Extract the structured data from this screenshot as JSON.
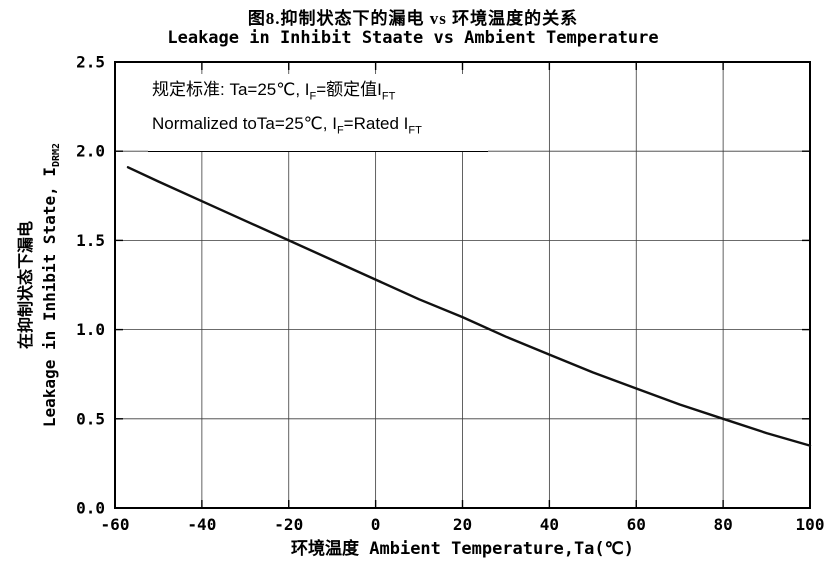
{
  "title": {
    "line1": "图8.抑制状态下的漏电 vs 环境温度的关系",
    "line2": "Leakage in Inhibit Staate vs Ambient Temperature"
  },
  "annotation": {
    "l1a": "规定标准: Ta=25℃, I",
    "l1sub1": "F",
    "l1b": "=额定值I",
    "l1sub2": "FT",
    "l2a": "Normalized toTa=25℃, I",
    "l2sub1": "F",
    "l2b": "=Rated I",
    "l2sub2": "FT"
  },
  "x_axis": {
    "title": "环境温度 Ambient Temperature,Ta(℃)"
  },
  "y_axis": {
    "title_cn": "在抑制状态下漏电",
    "title_en": "Leakage in Inhibit State, I",
    "title_sub": "DRM2"
  },
  "chart_data": {
    "type": "line",
    "title": "Leakage in Inhibit Staate vs Ambient Temperature",
    "xlabel": "环境温度 Ambient Temperature,Ta(℃)",
    "ylabel": "在抑制状态下漏电 Leakage in Inhibit State, I_DRM2",
    "xlim": [
      -60,
      100
    ],
    "ylim": [
      0,
      2.5
    ],
    "x_ticks": [
      -60,
      -40,
      -20,
      0,
      20,
      40,
      60,
      80,
      100
    ],
    "y_ticks": [
      0,
      0.5,
      1.0,
      1.5,
      2.0,
      2.5
    ],
    "x_tick_labels": [
      "-60",
      "-40",
      "-20",
      "0",
      "20",
      "40",
      "60",
      "80",
      "100"
    ],
    "y_tick_labels": [
      "0.0",
      "0.5",
      "1.0",
      "1.5",
      "2.0",
      "2.5"
    ],
    "grid": true,
    "legend": "none",
    "line_color": "#111111",
    "grid_color": "#3a3a3a",
    "x": [
      -57,
      -50,
      -40,
      -30,
      -20,
      -10,
      0,
      10,
      20,
      30,
      40,
      50,
      60,
      70,
      80,
      90,
      100
    ],
    "y": [
      1.91,
      1.83,
      1.72,
      1.61,
      1.5,
      1.39,
      1.28,
      1.17,
      1.07,
      0.96,
      0.86,
      0.76,
      0.67,
      0.58,
      0.5,
      0.42,
      0.35
    ]
  }
}
